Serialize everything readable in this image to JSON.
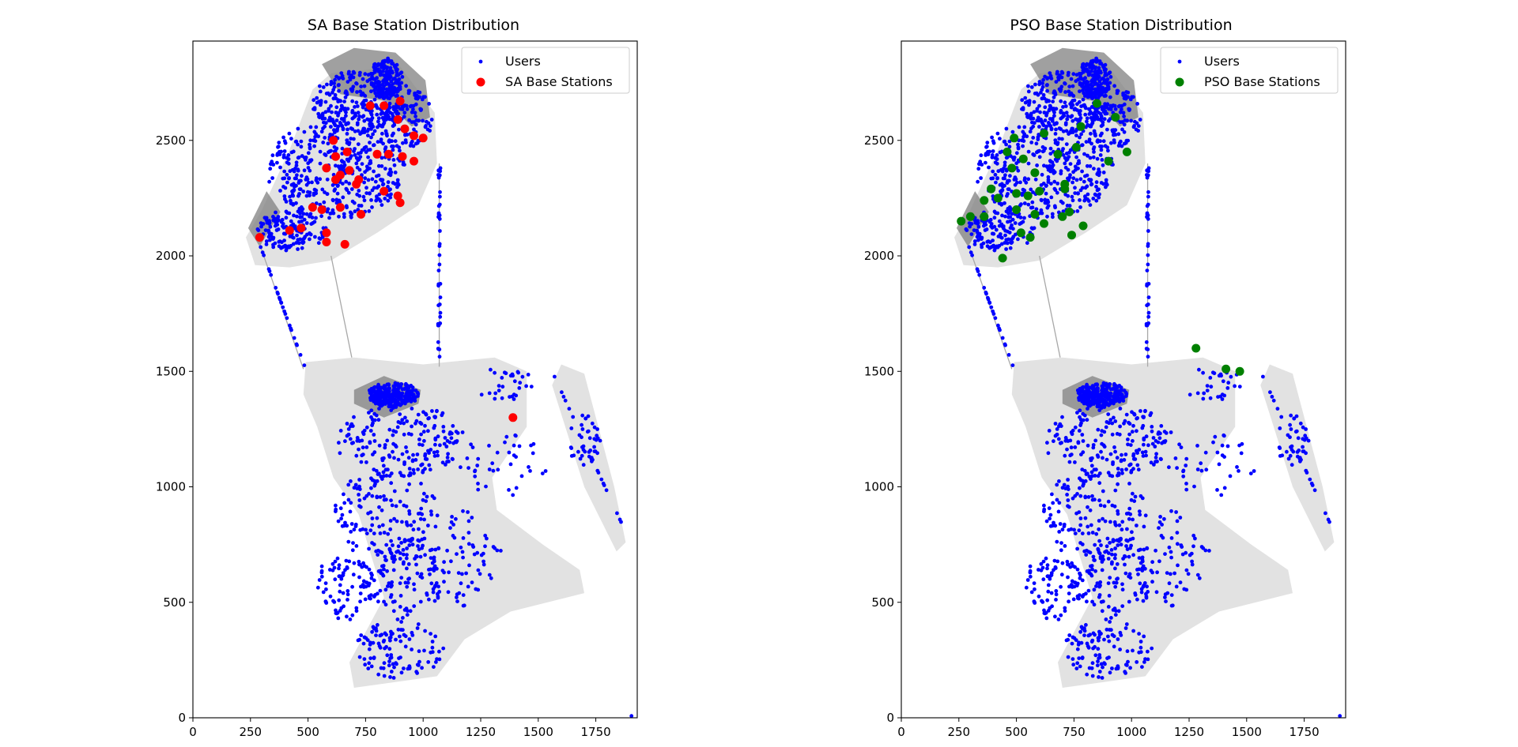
{
  "colors": {
    "users": "#0000ff",
    "sa": "#ff0000",
    "pso": "#008000",
    "map_fill": "#e2e2e2",
    "map_dense": "#808080"
  },
  "chart_data": [
    {
      "type": "scatter",
      "title": "SA Base Station Distribution",
      "xlabel": "",
      "ylabel": "",
      "xlim": [
        0,
        1930
      ],
      "ylim": [
        0,
        2930
      ],
      "xticks": [
        0,
        250,
        500,
        750,
        1000,
        1250,
        1500,
        1750
      ],
      "yticks": [
        0,
        500,
        1000,
        1500,
        2000,
        2500
      ],
      "grid": false,
      "legend_position": "top-right",
      "series": [
        {
          "name": "Users",
          "marker": "small-dot",
          "points": "generated-user-distribution"
        },
        {
          "name": "SA Base Stations",
          "marker": "large-dot",
          "points": [
            [
              770,
              2650
            ],
            [
              830,
              2650
            ],
            [
              900,
              2670
            ],
            [
              890,
              2590
            ],
            [
              920,
              2550
            ],
            [
              960,
              2520
            ],
            [
              1000,
              2510
            ],
            [
              610,
              2500
            ],
            [
              670,
              2450
            ],
            [
              620,
              2430
            ],
            [
              800,
              2440
            ],
            [
              850,
              2440
            ],
            [
              910,
              2430
            ],
            [
              960,
              2410
            ],
            [
              580,
              2380
            ],
            [
              680,
              2370
            ],
            [
              640,
              2350
            ],
            [
              620,
              2330
            ],
            [
              710,
              2310
            ],
            [
              720,
              2330
            ],
            [
              830,
              2280
            ],
            [
              890,
              2260
            ],
            [
              900,
              2230
            ],
            [
              520,
              2210
            ],
            [
              560,
              2200
            ],
            [
              640,
              2210
            ],
            [
              730,
              2180
            ],
            [
              470,
              2120
            ],
            [
              420,
              2110
            ],
            [
              290,
              2080
            ],
            [
              580,
              2100
            ],
            [
              580,
              2060
            ],
            [
              660,
              2050
            ],
            [
              1390,
              1300
            ]
          ]
        }
      ]
    },
    {
      "type": "scatter",
      "title": "PSO Base Station Distribution",
      "xlabel": "",
      "ylabel": "",
      "xlim": [
        0,
        1930
      ],
      "ylim": [
        0,
        2930
      ],
      "xticks": [
        0,
        250,
        500,
        750,
        1000,
        1250,
        1500,
        1750
      ],
      "yticks": [
        0,
        500,
        1000,
        1500,
        2000,
        2500
      ],
      "grid": false,
      "legend_position": "top-right",
      "series": [
        {
          "name": "Users",
          "marker": "small-dot",
          "points": "generated-user-distribution"
        },
        {
          "name": "PSO Base Stations",
          "marker": "large-dot",
          "points": [
            [
              850,
              2660
            ],
            [
              930,
              2600
            ],
            [
              780,
              2560
            ],
            [
              620,
              2530
            ],
            [
              490,
              2510
            ],
            [
              460,
              2450
            ],
            [
              530,
              2420
            ],
            [
              680,
              2440
            ],
            [
              760,
              2470
            ],
            [
              980,
              2450
            ],
            [
              900,
              2410
            ],
            [
              480,
              2380
            ],
            [
              580,
              2360
            ],
            [
              710,
              2310
            ],
            [
              390,
              2290
            ],
            [
              360,
              2240
            ],
            [
              420,
              2250
            ],
            [
              500,
              2270
            ],
            [
              550,
              2260
            ],
            [
              600,
              2280
            ],
            [
              710,
              2290
            ],
            [
              500,
              2200
            ],
            [
              580,
              2180
            ],
            [
              700,
              2170
            ],
            [
              730,
              2190
            ],
            [
              260,
              2150
            ],
            [
              300,
              2170
            ],
            [
              360,
              2170
            ],
            [
              620,
              2140
            ],
            [
              790,
              2130
            ],
            [
              520,
              2100
            ],
            [
              560,
              2080
            ],
            [
              740,
              2090
            ],
            [
              440,
              1990
            ],
            [
              1280,
              1600
            ],
            [
              1410,
              1510
            ],
            [
              1470,
              1500
            ]
          ]
        }
      ]
    }
  ]
}
